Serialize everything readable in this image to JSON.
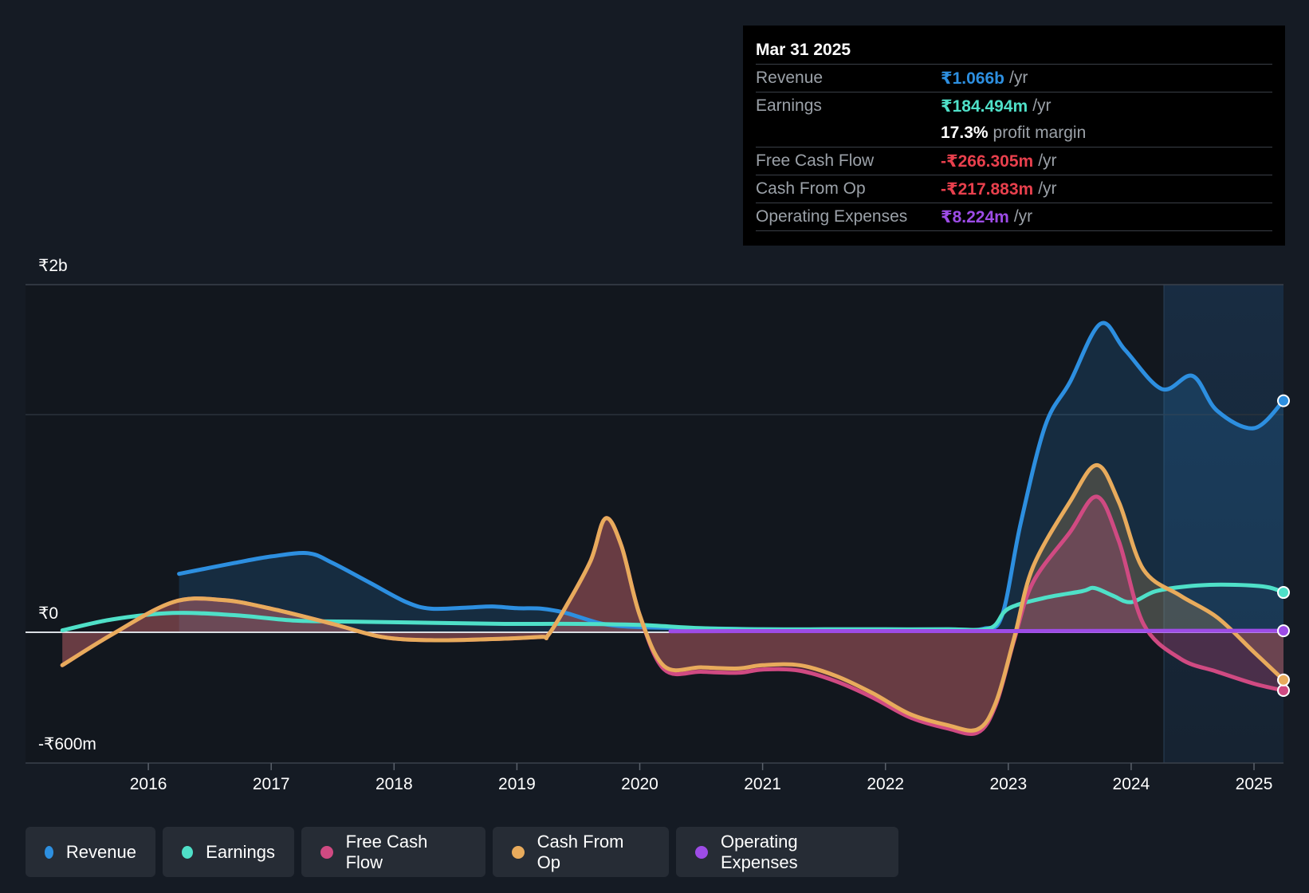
{
  "chart_data": {
    "type": "line",
    "title": "",
    "y_axis_labels": {
      "top": "₹2b",
      "zero": "₹0",
      "bottom": "-₹600m"
    },
    "ylim_millions": [
      -600,
      1600
    ],
    "xlim_years": [
      2015.0,
      2025.24
    ],
    "x_ticks": [
      "2016",
      "2017",
      "2018",
      "2019",
      "2020",
      "2021",
      "2022",
      "2023",
      "2024",
      "2025"
    ],
    "forecast_shade_start_year": 2024.25,
    "unit": "₹ millions",
    "series": [
      {
        "name": "Revenue",
        "color": "#2d8fe0",
        "fill": true,
        "points": [
          [
            2016.25,
            270
          ],
          [
            2016.7,
            320
          ],
          [
            2017.0,
            350
          ],
          [
            2017.3,
            365
          ],
          [
            2017.5,
            320
          ],
          [
            2017.8,
            230
          ],
          [
            2018.1,
            140
          ],
          [
            2018.3,
            110
          ],
          [
            2018.6,
            115
          ],
          [
            2018.8,
            120
          ],
          [
            2019.0,
            112
          ],
          [
            2019.2,
            110
          ],
          [
            2019.4,
            90
          ],
          [
            2019.7,
            40
          ],
          [
            2020.0,
            25
          ],
          [
            2020.5,
            20
          ],
          [
            2021.0,
            15
          ],
          [
            2021.5,
            15
          ],
          [
            2022.0,
            15
          ],
          [
            2022.5,
            15
          ],
          [
            2022.8,
            18
          ],
          [
            2022.95,
            80
          ],
          [
            2023.1,
            500
          ],
          [
            2023.3,
            950
          ],
          [
            2023.5,
            1150
          ],
          [
            2023.75,
            1420
          ],
          [
            2023.95,
            1300
          ],
          [
            2024.25,
            1120
          ],
          [
            2024.5,
            1180
          ],
          [
            2024.7,
            1020
          ],
          [
            2025.0,
            940
          ],
          [
            2025.24,
            1066
          ]
        ]
      },
      {
        "name": "Earnings",
        "color": "#4fe0c8",
        "fill": false,
        "points": [
          [
            2015.3,
            10
          ],
          [
            2015.7,
            60
          ],
          [
            2016.2,
            90
          ],
          [
            2016.7,
            80
          ],
          [
            2017.2,
            55
          ],
          [
            2017.7,
            50
          ],
          [
            2018.3,
            45
          ],
          [
            2018.9,
            40
          ],
          [
            2019.5,
            40
          ],
          [
            2020.0,
            35
          ],
          [
            2020.5,
            20
          ],
          [
            2021.0,
            15
          ],
          [
            2021.5,
            15
          ],
          [
            2022.0,
            15
          ],
          [
            2022.5,
            15
          ],
          [
            2022.85,
            20
          ],
          [
            2023.0,
            110
          ],
          [
            2023.3,
            160
          ],
          [
            2023.6,
            190
          ],
          [
            2023.7,
            205
          ],
          [
            2023.85,
            170
          ],
          [
            2024.0,
            140
          ],
          [
            2024.2,
            190
          ],
          [
            2024.5,
            215
          ],
          [
            2024.8,
            220
          ],
          [
            2025.1,
            210
          ],
          [
            2025.24,
            184.5
          ]
        ]
      },
      {
        "name": "Free Cash Flow",
        "color": "#d04a82",
        "fill": true,
        "points": [
          [
            2015.3,
            -150
          ],
          [
            2015.7,
            -10
          ],
          [
            2016.2,
            140
          ],
          [
            2016.6,
            150
          ],
          [
            2017.0,
            110
          ],
          [
            2017.5,
            40
          ],
          [
            2017.9,
            -20
          ],
          [
            2018.3,
            -35
          ],
          [
            2018.8,
            -30
          ],
          [
            2019.2,
            -20
          ],
          [
            2019.25,
            -15
          ],
          [
            2019.4,
            120
          ],
          [
            2019.6,
            330
          ],
          [
            2019.72,
            525
          ],
          [
            2019.85,
            400
          ],
          [
            2020.0,
            80
          ],
          [
            2020.2,
            -170
          ],
          [
            2020.5,
            -180
          ],
          [
            2020.8,
            -185
          ],
          [
            2021.0,
            -170
          ],
          [
            2021.3,
            -175
          ],
          [
            2021.6,
            -225
          ],
          [
            2021.9,
            -300
          ],
          [
            2022.2,
            -390
          ],
          [
            2022.5,
            -440
          ],
          [
            2022.75,
            -460
          ],
          [
            2022.9,
            -330
          ],
          [
            2023.05,
            -30
          ],
          [
            2023.2,
            230
          ],
          [
            2023.5,
            460
          ],
          [
            2023.72,
            625
          ],
          [
            2023.9,
            420
          ],
          [
            2024.1,
            40
          ],
          [
            2024.4,
            -120
          ],
          [
            2024.7,
            -180
          ],
          [
            2025.0,
            -235
          ],
          [
            2025.24,
            -266.3
          ]
        ]
      },
      {
        "name": "Cash From Op",
        "color": "#e8ab5c",
        "fill": true,
        "points": [
          [
            2015.3,
            -150
          ],
          [
            2015.7,
            -10
          ],
          [
            2016.2,
            140
          ],
          [
            2016.6,
            150
          ],
          [
            2017.0,
            110
          ],
          [
            2017.5,
            40
          ],
          [
            2017.9,
            -20
          ],
          [
            2018.3,
            -35
          ],
          [
            2018.8,
            -30
          ],
          [
            2019.2,
            -20
          ],
          [
            2019.25,
            -15
          ],
          [
            2019.4,
            120
          ],
          [
            2019.6,
            330
          ],
          [
            2019.72,
            525
          ],
          [
            2019.85,
            400
          ],
          [
            2020.0,
            80
          ],
          [
            2020.2,
            -155
          ],
          [
            2020.5,
            -160
          ],
          [
            2020.8,
            -165
          ],
          [
            2021.0,
            -150
          ],
          [
            2021.3,
            -150
          ],
          [
            2021.6,
            -200
          ],
          [
            2021.9,
            -280
          ],
          [
            2022.2,
            -375
          ],
          [
            2022.5,
            -425
          ],
          [
            2022.75,
            -445
          ],
          [
            2022.9,
            -320
          ],
          [
            2023.05,
            -20
          ],
          [
            2023.2,
            300
          ],
          [
            2023.5,
            600
          ],
          [
            2023.72,
            770
          ],
          [
            2023.9,
            600
          ],
          [
            2024.1,
            290
          ],
          [
            2024.4,
            170
          ],
          [
            2024.7,
            70
          ],
          [
            2025.0,
            -90
          ],
          [
            2025.24,
            -217.9
          ]
        ]
      },
      {
        "name": "Operating Expenses",
        "color": "#9d4ce6",
        "fill": false,
        "points": [
          [
            2020.25,
            6
          ],
          [
            2021.0,
            7
          ],
          [
            2022.0,
            7
          ],
          [
            2023.0,
            7
          ],
          [
            2024.0,
            8
          ],
          [
            2025.24,
            8.2
          ]
        ]
      }
    ]
  },
  "tooltip": {
    "date": "Mar 31 2025",
    "rows": [
      {
        "label": "Revenue",
        "value": "₹1.066b",
        "unit": "/yr",
        "color": "#2d8fe0"
      },
      {
        "label": "Earnings",
        "value": "₹184.494m",
        "unit": "/yr",
        "color": "#4fe0c8"
      },
      {
        "label": "",
        "value": "17.3%",
        "unit": "profit margin",
        "color": "#ffffff"
      },
      {
        "label": "Free Cash Flow",
        "value": "-₹266.305m",
        "unit": "/yr",
        "color": "#e8404d"
      },
      {
        "label": "Cash From Op",
        "value": "-₹217.883m",
        "unit": "/yr",
        "color": "#e8404d"
      },
      {
        "label": "Operating Expenses",
        "value": "₹8.224m",
        "unit": "/yr",
        "color": "#9d4ce6"
      }
    ]
  },
  "legend": [
    {
      "label": "Revenue",
      "color": "#2d8fe0"
    },
    {
      "label": "Earnings",
      "color": "#4fe0c8"
    },
    {
      "label": "Free Cash Flow",
      "color": "#d04a82"
    },
    {
      "label": "Cash From Op",
      "color": "#e8ab5c"
    },
    {
      "label": "Operating Expenses",
      "color": "#9d4ce6"
    }
  ]
}
